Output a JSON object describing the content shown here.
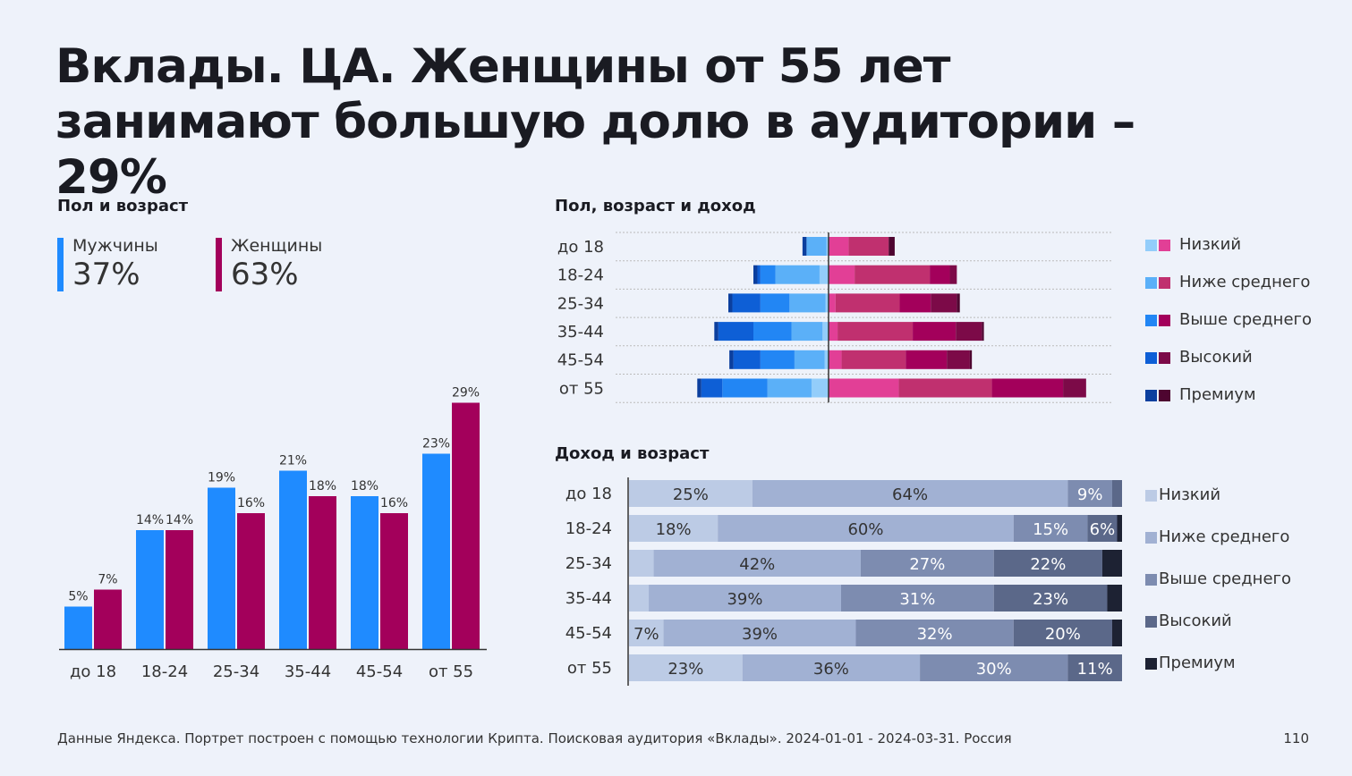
{
  "title": "Вклады. ЦА. Женщины от 55 лет занимают большую долю в аудитории – 29%",
  "footer": "Данные Яндекса. Портрет построен с помощью технологии Крипта. Поисковая аудитория «Вклады». 2024-01-01 - 2024-03-31. Россия",
  "page_number": "110",
  "gender_legend": {
    "men": {
      "label": "Мужчины",
      "value": "37%",
      "color": "#1f8bff"
    },
    "women": {
      "label": "Женщины",
      "value": "63%",
      "color": "#a3005b"
    }
  },
  "chart_data": [
    {
      "type": "bar",
      "title": "Пол и возраст",
      "categories": [
        "до 18",
        "18-24",
        "25-34",
        "35-44",
        "45-54",
        "от 55"
      ],
      "series": [
        {
          "name": "Мужчины",
          "color": "#1f8bff",
          "values": [
            5,
            14,
            19,
            21,
            18,
            23
          ],
          "labels": [
            "5%",
            "14%",
            "19%",
            "21%",
            "18%",
            "23%"
          ]
        },
        {
          "name": "Женщины",
          "color": "#a3005b",
          "values": [
            7,
            14,
            16,
            18,
            16,
            29
          ],
          "labels": [
            "7%",
            "14%",
            "16%",
            "18%",
            "16%",
            "29%"
          ]
        }
      ],
      "ylim": [
        0,
        29
      ]
    },
    {
      "type": "bar",
      "title": "Пол, возраст и доход",
      "orientation": "horizontal-diverging-stacked",
      "categories": [
        "до 18",
        "18-24",
        "25-34",
        "35-44",
        "45-54",
        "от 55"
      ],
      "legend": [
        "Низкий",
        "Ниже среднего",
        "Выше среднего",
        "Высокий",
        "Премиум"
      ],
      "men_colors": [
        "#93cdfa",
        "#5bb0f8",
        "#2286f4",
        "#0e5fd6",
        "#0b3f9e"
      ],
      "women_colors": [
        "#e23f96",
        "#c0306f",
        "#a3005b",
        "#7c0a48",
        "#4e0530"
      ],
      "men": [
        [
          0.2,
          2.0,
          0.0,
          0.0,
          0.4
        ],
        [
          0.9,
          4.4,
          1.5,
          0.3,
          0.4
        ],
        [
          0.3,
          3.6,
          2.9,
          2.8,
          0.4
        ],
        [
          0.6,
          3.1,
          3.8,
          3.5,
          0.4
        ],
        [
          0.4,
          3.0,
          3.4,
          2.7,
          0.4
        ],
        [
          1.7,
          4.4,
          4.5,
          2.1,
          0.4
        ]
      ],
      "women": [
        [
          2.0,
          4.0,
          0.0,
          0.0,
          0.6
        ],
        [
          2.6,
          7.5,
          2.0,
          0.7,
          0.0
        ],
        [
          0.7,
          6.4,
          3.1,
          2.6,
          0.3
        ],
        [
          0.9,
          7.5,
          4.3,
          2.6,
          0.2
        ],
        [
          1.3,
          6.4,
          4.1,
          2.3,
          0.2
        ],
        [
          7.0,
          9.3,
          7.1,
          2.3,
          0.0
        ]
      ],
      "xlim": [
        -12.5,
        28
      ]
    },
    {
      "type": "bar",
      "title": "Доход и возраст",
      "orientation": "horizontal-stacked-100",
      "categories": [
        "до 18",
        "18-24",
        "25-34",
        "35-44",
        "45-54",
        "от 55"
      ],
      "legend": [
        "Низкий",
        "Ниже среднего",
        "Выше среднего",
        "Высокий",
        "Премиум"
      ],
      "colors": [
        "#bccbe5",
        "#a1b1d3",
        "#7d8cb0",
        "#5b6889",
        "#1d2233"
      ],
      "series": [
        {
          "name": "Низкий",
          "values": [
            25,
            18,
            5,
            4,
            7,
            23
          ],
          "labels": [
            "25%",
            "18%",
            "",
            "",
            "7%",
            "23%"
          ]
        },
        {
          "name": "Ниже среднего",
          "values": [
            64,
            60,
            42,
            39,
            39,
            36
          ],
          "labels": [
            "64%",
            "60%",
            "42%",
            "39%",
            "39%",
            "36%"
          ]
        },
        {
          "name": "Выше среднего",
          "values": [
            9,
            15,
            27,
            31,
            32,
            30
          ],
          "labels": [
            "9%",
            "15%",
            "27%",
            "31%",
            "32%",
            "30%"
          ]
        },
        {
          "name": "Высокий",
          "values": [
            2,
            6,
            22,
            23,
            20,
            11
          ],
          "labels": [
            "",
            "6%",
            "22%",
            "23%",
            "20%",
            "11%"
          ]
        },
        {
          "name": "Премиум",
          "values": [
            0,
            1,
            4,
            3,
            2,
            0
          ],
          "labels": [
            "",
            "",
            "",
            "",
            "",
            ""
          ]
        }
      ],
      "xlim": [
        0,
        100
      ]
    }
  ]
}
